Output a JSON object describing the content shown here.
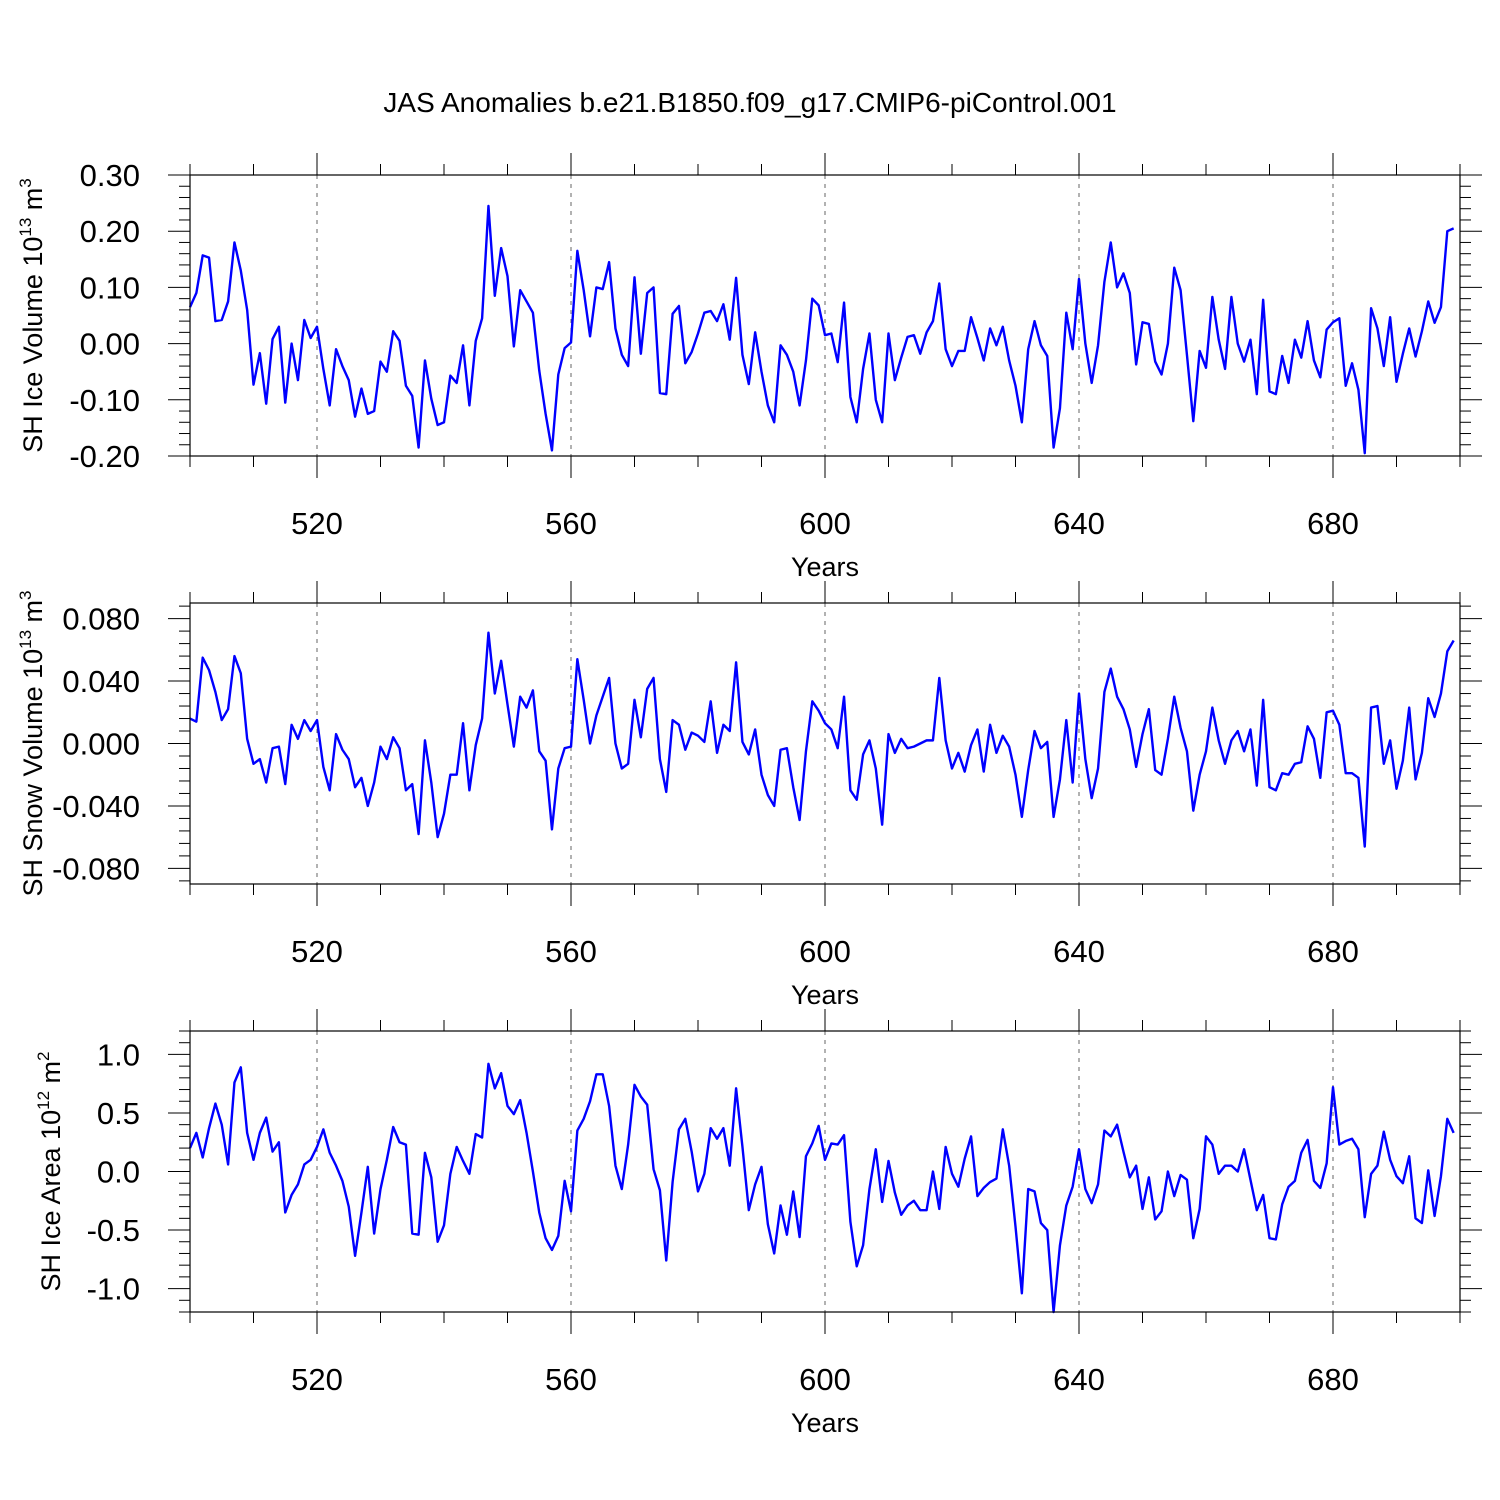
{
  "title": "JAS Anomalies b.e21.B1850.f09_g17.CMIP6-piControl.001",
  "colors": {
    "line": "#0000ff",
    "axis": "#000000",
    "grid": "#666666"
  },
  "chart_data": [
    {
      "type": "line",
      "ylabel": "SH Ice Volume 10",
      "ylabel_exp": "13",
      "ylabel_unit": " m",
      "ylabel_unit_exp": "3",
      "xlabel": "Years",
      "xlim": [
        500,
        700
      ],
      "ylim": [
        -0.2,
        0.3
      ],
      "yticks": [
        -0.2,
        -0.1,
        0.0,
        0.1,
        0.2,
        0.3
      ],
      "ytick_labels": [
        "-0.20",
        "-0.10",
        "0.00",
        "0.10",
        "0.20",
        "0.30"
      ],
      "xticks": [
        520,
        560,
        600,
        640,
        680
      ],
      "xtick_labels": [
        "520",
        "560",
        "600",
        "640",
        "680"
      ],
      "grid_x": true,
      "x0": 500,
      "values": [
        0.065,
        0.09,
        0.157,
        0.153,
        0.04,
        0.042,
        0.075,
        0.18,
        0.13,
        0.06,
        -0.073,
        -0.017,
        -0.107,
        0.008,
        0.03,
        -0.105,
        0.0,
        -0.065,
        0.042,
        0.01,
        0.03,
        -0.045,
        -0.11,
        -0.01,
        -0.04,
        -0.065,
        -0.13,
        -0.08,
        -0.125,
        -0.12,
        -0.032,
        -0.05,
        0.022,
        0.005,
        -0.075,
        -0.093,
        -0.185,
        -0.03,
        -0.098,
        -0.145,
        -0.14,
        -0.057,
        -0.07,
        -0.003,
        -0.11,
        0.005,
        0.045,
        0.245,
        0.085,
        0.17,
        0.12,
        -0.005,
        0.095,
        0.075,
        0.055,
        -0.048,
        -0.125,
        -0.19,
        -0.055,
        -0.008,
        0.002,
        0.165,
        0.095,
        0.013,
        0.1,
        0.097,
        0.145,
        0.027,
        -0.02,
        -0.04,
        0.118,
        -0.018,
        0.09,
        0.1,
        -0.088,
        -0.09,
        0.053,
        0.067,
        -0.035,
        -0.015,
        0.018,
        0.055,
        0.058,
        0.04,
        0.07,
        0.007,
        0.117,
        -0.02,
        -0.072,
        0.02,
        -0.05,
        -0.11,
        -0.14,
        -0.003,
        -0.02,
        -0.05,
        -0.11,
        -0.03,
        0.08,
        0.068,
        0.015,
        0.018,
        -0.033,
        0.073,
        -0.095,
        -0.14,
        -0.045,
        0.018,
        -0.1,
        -0.14,
        0.018,
        -0.065,
        -0.025,
        0.012,
        0.015,
        -0.018,
        0.02,
        0.04,
        0.107,
        -0.01,
        -0.04,
        -0.013,
        -0.013,
        0.047,
        0.01,
        -0.03,
        0.027,
        -0.003,
        0.03,
        -0.03,
        -0.075,
        -0.14,
        -0.01,
        0.04,
        -0.003,
        -0.022,
        -0.185,
        -0.115,
        0.055,
        -0.01,
        0.115,
        0.0,
        -0.07,
        -0.003,
        0.11,
        0.18,
        0.1,
        0.125,
        0.09,
        -0.037,
        0.038,
        0.035,
        -0.032,
        -0.055,
        0.0,
        0.135,
        0.095,
        -0.02,
        -0.138,
        -0.013,
        -0.043,
        0.083,
        0.007,
        -0.045,
        0.083,
        0.0,
        -0.032,
        0.007,
        -0.09,
        0.078,
        -0.085,
        -0.09,
        -0.022,
        -0.07,
        0.007,
        -0.025,
        0.04,
        -0.03,
        -0.06,
        0.025,
        0.038,
        0.045,
        -0.075,
        -0.035,
        -0.082,
        -0.195,
        0.063,
        0.027,
        -0.04,
        0.047,
        -0.068,
        -0.018,
        0.027,
        -0.023,
        0.022,
        0.075,
        0.037,
        0.065,
        0.2,
        0.205
      ]
    },
    {
      "type": "line",
      "ylabel": "SH Snow Volume 10",
      "ylabel_exp": "13",
      "ylabel_unit": " m",
      "ylabel_unit_exp": "3",
      "xlabel": "Years",
      "xlim": [
        500,
        700
      ],
      "ylim": [
        -0.09,
        0.09
      ],
      "yticks": [
        -0.08,
        -0.04,
        0.0,
        0.04,
        0.08
      ],
      "ytick_labels": [
        "-0.080",
        "-0.040",
        "0.000",
        "0.040",
        "0.080"
      ],
      "xticks": [
        520,
        560,
        600,
        640,
        680
      ],
      "xtick_labels": [
        "520",
        "560",
        "600",
        "640",
        "680"
      ],
      "grid_x": true,
      "x0": 500,
      "values": [
        0.016,
        0.014,
        0.055,
        0.047,
        0.033,
        0.015,
        0.022,
        0.056,
        0.045,
        0.003,
        -0.013,
        -0.01,
        -0.025,
        -0.003,
        -0.002,
        -0.026,
        0.012,
        0.003,
        0.015,
        0.008,
        0.015,
        -0.015,
        -0.03,
        0.006,
        -0.004,
        -0.01,
        -0.028,
        -0.022,
        -0.04,
        -0.025,
        -0.002,
        -0.01,
        0.004,
        -0.003,
        -0.03,
        -0.026,
        -0.058,
        0.002,
        -0.025,
        -0.06,
        -0.045,
        -0.02,
        -0.02,
        0.013,
        -0.03,
        -0.001,
        0.016,
        0.071,
        0.032,
        0.053,
        0.025,
        -0.002,
        0.03,
        0.023,
        0.034,
        -0.005,
        -0.011,
        -0.055,
        -0.016,
        -0.003,
        -0.002,
        0.054,
        0.028,
        0.0,
        0.018,
        0.03,
        0.042,
        0.0,
        -0.016,
        -0.013,
        0.028,
        0.004,
        0.035,
        0.042,
        -0.01,
        -0.031,
        0.015,
        0.012,
        -0.004,
        0.007,
        0.005,
        0.001,
        0.027,
        -0.006,
        0.012,
        0.008,
        0.052,
        0.001,
        -0.007,
        0.009,
        -0.02,
        -0.033,
        -0.04,
        -0.004,
        -0.003,
        -0.028,
        -0.049,
        -0.005,
        0.027,
        0.021,
        0.013,
        0.009,
        -0.003,
        0.03,
        -0.03,
        -0.036,
        -0.007,
        0.002,
        -0.016,
        -0.052,
        0.006,
        -0.006,
        0.003,
        -0.003,
        -0.002,
        0.0,
        0.002,
        0.002,
        0.042,
        0.002,
        -0.016,
        -0.006,
        -0.018,
        -0.001,
        0.009,
        -0.018,
        0.012,
        -0.006,
        0.005,
        -0.002,
        -0.02,
        -0.047,
        -0.017,
        0.008,
        -0.003,
        0.001,
        -0.047,
        -0.023,
        0.015,
        -0.025,
        0.032,
        -0.01,
        -0.035,
        -0.016,
        0.033,
        0.048,
        0.03,
        0.022,
        0.009,
        -0.015,
        0.006,
        0.022,
        -0.017,
        -0.02,
        0.003,
        0.03,
        0.01,
        -0.005,
        -0.043,
        -0.02,
        -0.005,
        0.023,
        0.002,
        -0.013,
        0.002,
        0.008,
        -0.005,
        0.009,
        -0.027,
        0.028,
        -0.028,
        -0.03,
        -0.019,
        -0.02,
        -0.013,
        -0.012,
        0.011,
        0.003,
        -0.022,
        0.02,
        0.021,
        0.012,
        -0.019,
        -0.019,
        -0.022,
        -0.066,
        0.023,
        0.024,
        -0.013,
        0.002,
        -0.029,
        -0.011,
        0.023,
        -0.023,
        -0.006,
        0.029,
        0.017,
        0.032,
        0.059,
        0.066
      ]
    },
    {
      "type": "line",
      "ylabel": "SH Ice Area 10",
      "ylabel_exp": "12",
      "ylabel_unit": " m",
      "ylabel_unit_exp": "2",
      "xlabel": "Years",
      "xlim": [
        500,
        700
      ],
      "ylim": [
        -1.2,
        1.2
      ],
      "yticks": [
        -1.0,
        -0.5,
        0.0,
        0.5,
        1.0
      ],
      "ytick_labels": [
        "-1.0",
        "-0.5",
        "0.0",
        "0.5",
        "1.0"
      ],
      "xticks": [
        520,
        560,
        600,
        640,
        680
      ],
      "xtick_labels": [
        "520",
        "560",
        "600",
        "640",
        "680"
      ],
      "grid_x": true,
      "x0": 500,
      "values": [
        0.2,
        0.33,
        0.12,
        0.37,
        0.58,
        0.4,
        0.06,
        0.76,
        0.89,
        0.33,
        0.1,
        0.33,
        0.46,
        0.17,
        0.25,
        -0.35,
        -0.2,
        -0.11,
        0.06,
        0.1,
        0.21,
        0.36,
        0.16,
        0.05,
        -0.08,
        -0.3,
        -0.72,
        -0.35,
        0.04,
        -0.53,
        -0.15,
        0.1,
        0.38,
        0.25,
        0.23,
        -0.53,
        -0.54,
        0.16,
        -0.05,
        -0.6,
        -0.46,
        -0.02,
        0.21,
        0.09,
        -0.02,
        0.32,
        0.29,
        0.92,
        0.71,
        0.84,
        0.56,
        0.49,
        0.61,
        0.33,
        0.0,
        -0.35,
        -0.57,
        -0.67,
        -0.55,
        -0.08,
        -0.34,
        0.35,
        0.45,
        0.6,
        0.83,
        0.83,
        0.56,
        0.05,
        -0.15,
        0.23,
        0.74,
        0.64,
        0.57,
        0.02,
        -0.16,
        -0.76,
        -0.09,
        0.36,
        0.45,
        0.17,
        -0.17,
        -0.02,
        0.37,
        0.28,
        0.37,
        0.05,
        0.71,
        0.21,
        -0.33,
        -0.11,
        0.04,
        -0.45,
        -0.7,
        -0.29,
        -0.54,
        -0.17,
        -0.56,
        0.13,
        0.24,
        0.39,
        0.1,
        0.24,
        0.23,
        0.31,
        -0.43,
        -0.81,
        -0.63,
        -0.15,
        0.19,
        -0.26,
        0.09,
        -0.18,
        -0.37,
        -0.29,
        -0.25,
        -0.33,
        -0.33,
        0.0,
        -0.32,
        0.21,
        -0.02,
        -0.13,
        0.11,
        0.3,
        -0.21,
        -0.14,
        -0.09,
        -0.06,
        0.36,
        0.05,
        -0.47,
        -1.04,
        -0.15,
        -0.17,
        -0.44,
        -0.5,
        -1.2,
        -0.63,
        -0.29,
        -0.13,
        0.19,
        -0.15,
        -0.27,
        -0.11,
        0.35,
        0.3,
        0.4,
        0.17,
        -0.05,
        0.05,
        -0.32,
        -0.05,
        -0.41,
        -0.34,
        0.0,
        -0.21,
        -0.03,
        -0.07,
        -0.57,
        -0.32,
        0.3,
        0.23,
        -0.02,
        0.05,
        0.05,
        0.0,
        0.19,
        -0.07,
        -0.33,
        -0.2,
        -0.57,
        -0.58,
        -0.28,
        -0.13,
        -0.08,
        0.16,
        0.27,
        -0.08,
        -0.14,
        0.07,
        0.72,
        0.23,
        0.26,
        0.28,
        0.19,
        -0.39,
        -0.02,
        0.05,
        0.34,
        0.1,
        -0.04,
        -0.1,
        0.13,
        -0.4,
        -0.44,
        0.01,
        -0.38,
        -0.04,
        0.45,
        0.33
      ]
    }
  ]
}
